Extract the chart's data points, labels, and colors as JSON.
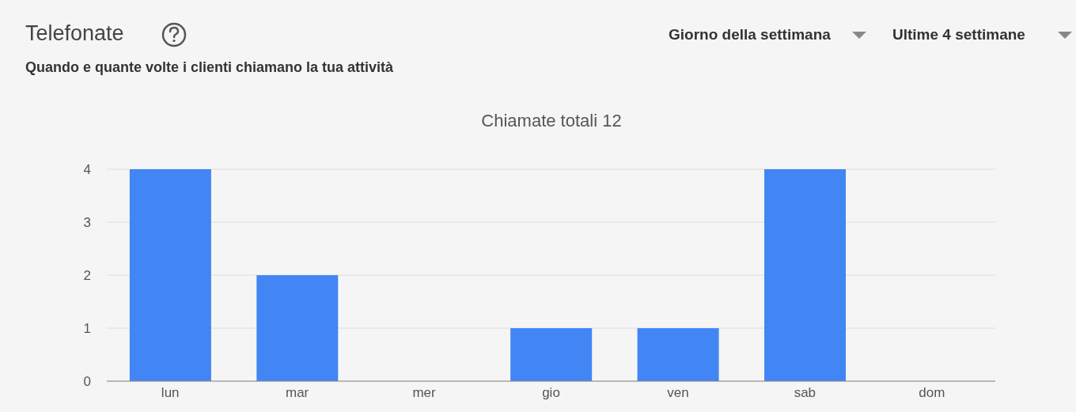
{
  "chart_data": {
    "type": "bar",
    "title": "Telefonate",
    "subtitle": "Quando e quante volte i clienti chiamano la tua attività",
    "annotations": [
      "Chiamate totali 12",
      "Giorno della settimana",
      "Ultime 4 settimane"
    ],
    "categories": [
      "lun",
      "mar",
      "mer",
      "gio",
      "ven",
      "sab",
      "dom"
    ],
    "values": [
      4,
      2,
      0,
      1,
      1,
      4,
      0
    ],
    "color": "#4285f4",
    "ylim": [
      0,
      4
    ],
    "yticks": [
      0,
      1,
      2,
      3,
      4
    ],
    "grid": "y",
    "legend": false
  }
}
